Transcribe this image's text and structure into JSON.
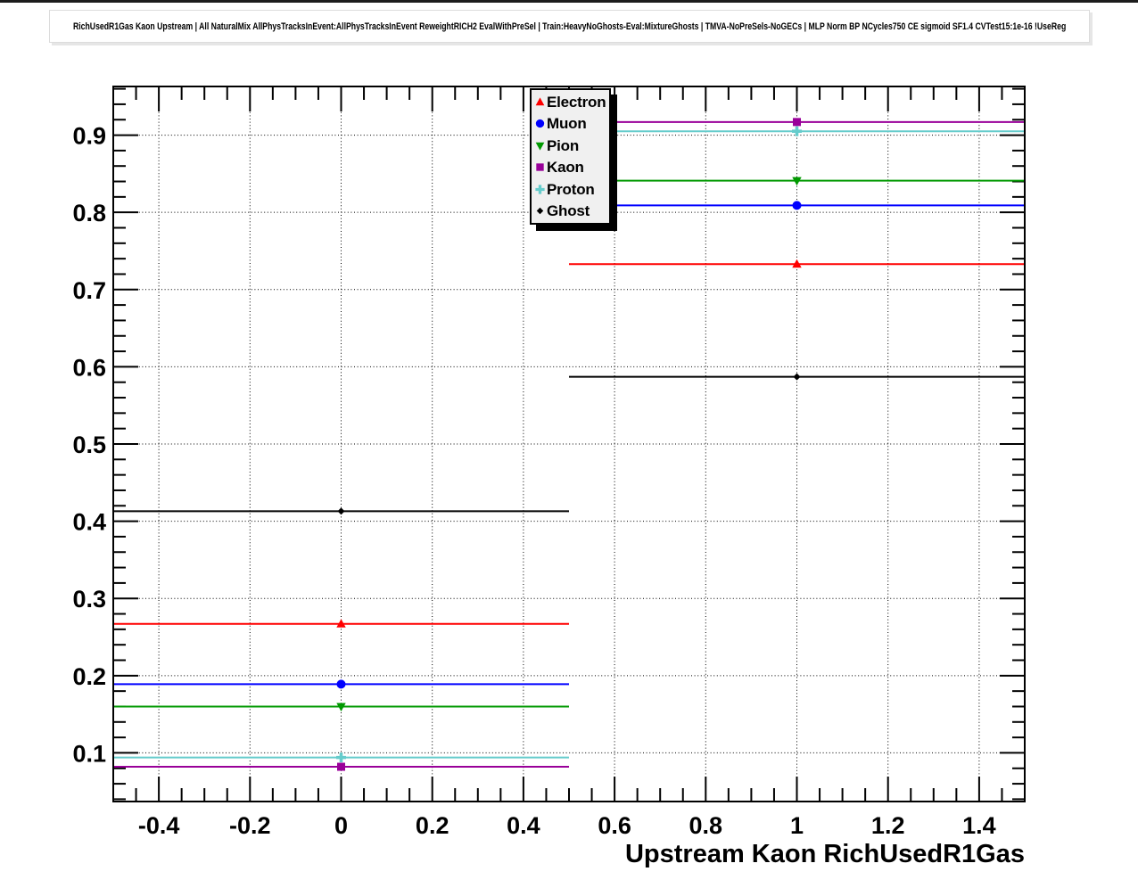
{
  "chart_data": {
    "type": "scatter",
    "title": "RichUsedR1Gas Kaon Upstream | All NaturalMix AllPhysTracksInEvent:AllPhysTracksInEvent ReweightRICH2 EvalWithPreSel | Train:HeavyNoGhosts-Eval:MixtureGhosts | TMVA-NoPreSels-NoGECs | MLP Norm BP NCycles750 CE sigmoid SF1.4 CVTest15:1e-16 !UseReg",
    "xlabel": "Upstream Kaon RichUsedR1Gas",
    "ylabel": "",
    "xlim": [
      -0.5,
      1.5
    ],
    "ylim": [
      0.037,
      0.963
    ],
    "x_major_ticks": [
      -0.4,
      -0.2,
      0,
      0.2,
      0.4,
      0.6,
      0.8,
      1,
      1.2,
      1.4
    ],
    "x_tick_labels": [
      "-0.4",
      "-0.2",
      "0",
      "0.2",
      "0.4",
      "0.6",
      "0.8",
      "1",
      "1.2",
      "1.4"
    ],
    "x_minor_step": 0.05,
    "y_major_ticks": [
      0.1,
      0.2,
      0.3,
      0.4,
      0.5,
      0.6,
      0.7,
      0.8,
      0.9
    ],
    "y_tick_labels": [
      "0.1",
      "0.2",
      "0.3",
      "0.4",
      "0.5",
      "0.6",
      "0.7",
      "0.8",
      "0.9"
    ],
    "y_minor_step": 0.02,
    "grid": "dotted",
    "legend_position": "top-center",
    "x": [
      0,
      1
    ],
    "xerr": 0.5,
    "series": [
      {
        "name": "Electron",
        "color": "#ff0000",
        "marker": "triangle-up",
        "values": [
          0.267,
          0.733
        ]
      },
      {
        "name": "Muon",
        "color": "#0000ff",
        "marker": "circle",
        "values": [
          0.189,
          0.809
        ]
      },
      {
        "name": "Pion",
        "color": "#009900",
        "marker": "triangle-down",
        "values": [
          0.16,
          0.841
        ]
      },
      {
        "name": "Kaon",
        "color": "#990099",
        "marker": "square",
        "values": [
          0.082,
          0.917
        ]
      },
      {
        "name": "Proton",
        "color": "#66cccc",
        "marker": "cross",
        "values": [
          0.094,
          0.905
        ]
      },
      {
        "name": "Ghost",
        "color": "#000000",
        "marker": "diamond",
        "values": [
          0.413,
          0.587
        ]
      }
    ]
  }
}
